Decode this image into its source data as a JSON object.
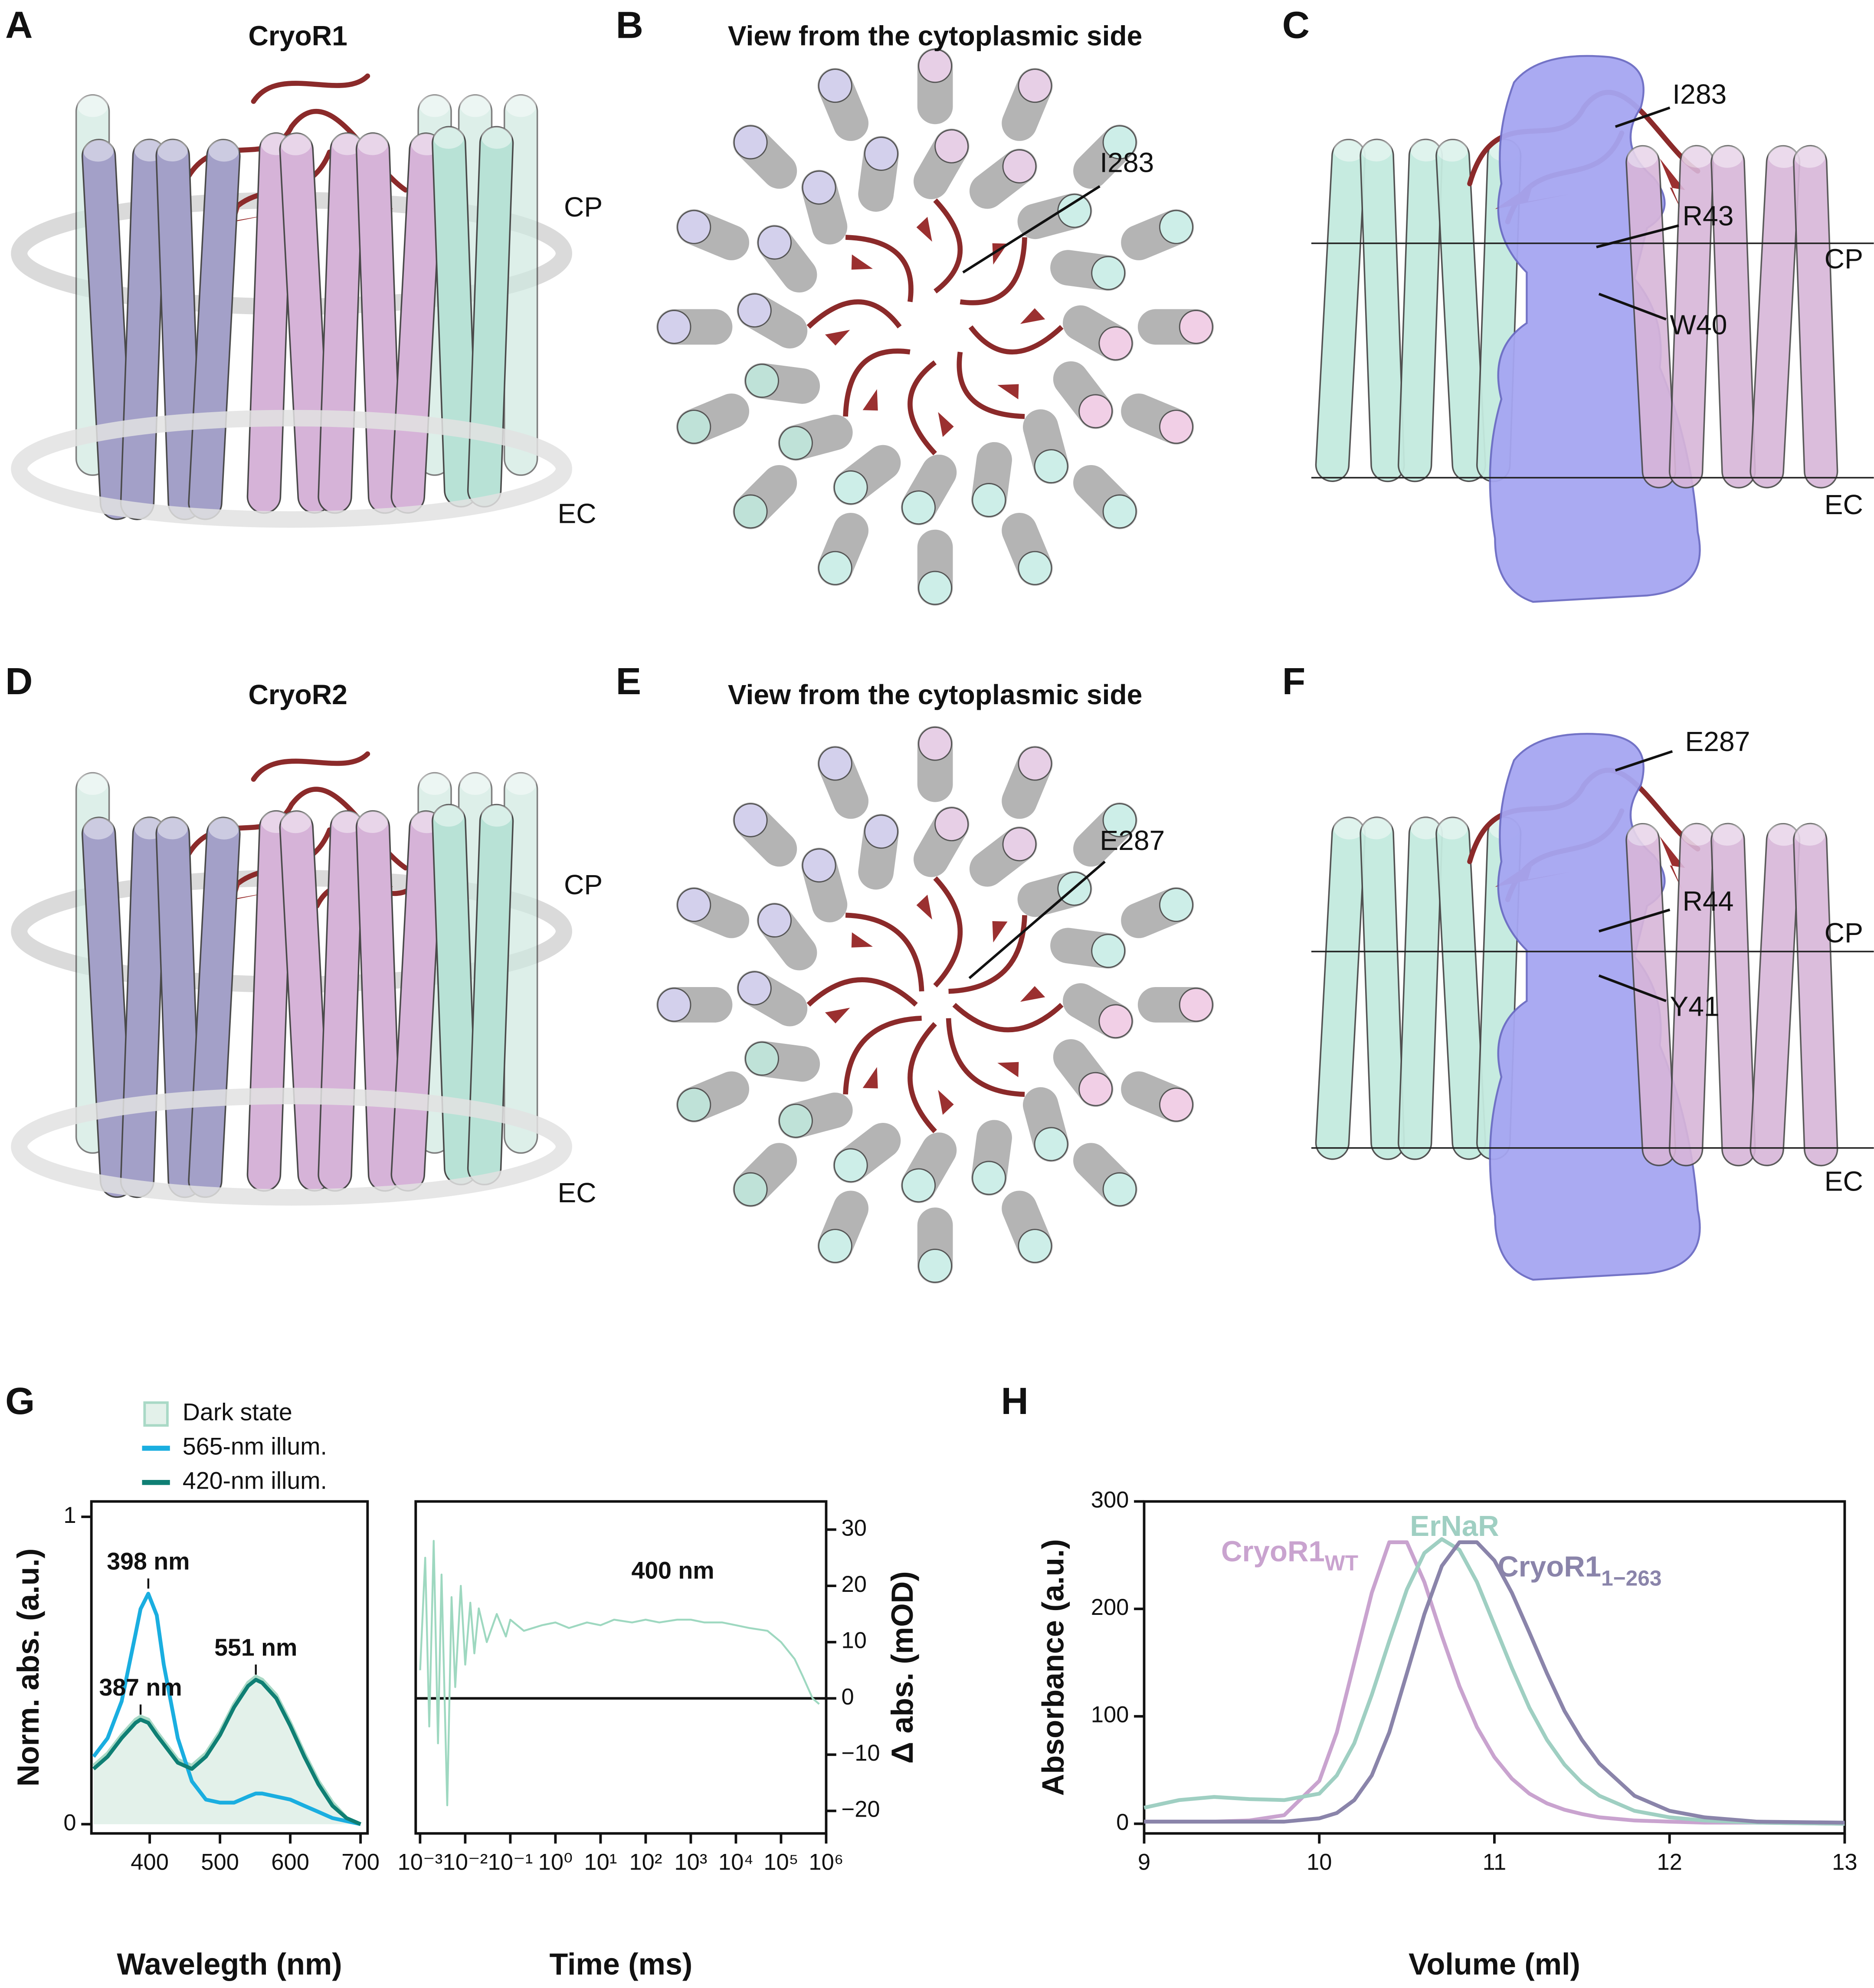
{
  "panels": [
    {
      "label": "A",
      "title": "CryoR1",
      "annotations": [
        "CP",
        "EC"
      ]
    },
    {
      "label": "B",
      "title": "View from the cytoplasmic side",
      "annotations": [
        "I283"
      ]
    },
    {
      "label": "C",
      "annotations": [
        "I283",
        "R43",
        "W40",
        "CP",
        "EC"
      ]
    },
    {
      "label": "D",
      "title": "CryoR2",
      "annotations": [
        "CP",
        "EC"
      ]
    },
    {
      "label": "E",
      "title": "View from the cytoplasmic side",
      "annotations": [
        "E287"
      ]
    },
    {
      "label": "F",
      "annotations": [
        "E287",
        "R44",
        "Y41",
        "CP",
        "EC"
      ]
    },
    {
      "label": "G"
    },
    {
      "label": "H"
    }
  ],
  "chart_data": [
    {
      "type": "line",
      "xlabel": "Wavelegth (nm)",
      "ylabel": "Norm. abs. (a.u.)",
      "x": [
        320,
        340,
        360,
        380,
        387,
        398,
        410,
        420,
        440,
        460,
        480,
        500,
        520,
        540,
        551,
        560,
        580,
        600,
        620,
        640,
        660,
        680,
        700
      ],
      "series": [
        {
          "name": "Dark state",
          "style": "area",
          "color": "#a9d9c6",
          "fill_color": "#e3f1ea",
          "values": [
            0.19,
            0.23,
            0.29,
            0.34,
            0.35,
            0.34,
            0.3,
            0.27,
            0.21,
            0.19,
            0.23,
            0.3,
            0.39,
            0.46,
            0.48,
            0.47,
            0.42,
            0.33,
            0.23,
            0.14,
            0.07,
            0.02,
            0.0
          ]
        },
        {
          "name": "565-nm illum.",
          "color": "#1aaee0",
          "values": [
            0.22,
            0.28,
            0.4,
            0.62,
            0.7,
            0.75,
            0.68,
            0.52,
            0.28,
            0.14,
            0.08,
            0.07,
            0.07,
            0.09,
            0.1,
            0.1,
            0.09,
            0.08,
            0.06,
            0.04,
            0.02,
            0.01,
            0.0
          ]
        },
        {
          "name": "420-nm illum.",
          "color": "#0f7f74",
          "values": [
            0.18,
            0.22,
            0.28,
            0.33,
            0.34,
            0.33,
            0.29,
            0.26,
            0.2,
            0.18,
            0.22,
            0.29,
            0.38,
            0.45,
            0.47,
            0.46,
            0.41,
            0.32,
            0.22,
            0.13,
            0.06,
            0.02,
            0.0
          ]
        }
      ],
      "annotations": [
        {
          "text": "398 nm",
          "x": 398,
          "y": 0.75
        },
        {
          "text": "387 nm",
          "x": 387,
          "y": 0.34
        },
        {
          "text": "551 nm",
          "x": 551,
          "y": 0.47
        }
      ],
      "xlim": [
        317,
        710
      ],
      "ylim": [
        -0.03,
        1.05
      ],
      "xticks": [
        400,
        500,
        600,
        700
      ],
      "yticks": [
        0,
        1
      ]
    },
    {
      "type": "line",
      "xlabel": "Time (ms)",
      "ylabel": "Δ abs. (mOD)",
      "xscale": "log",
      "yaxis_side": "right",
      "hline": 0,
      "x": [
        0.001,
        0.0013,
        0.0016,
        0.002,
        0.0025,
        0.003,
        0.004,
        0.005,
        0.006,
        0.008,
        0.01,
        0.013,
        0.016,
        0.02,
        0.03,
        0.05,
        0.08,
        0.1,
        0.2,
        0.5,
        1,
        2,
        5,
        10,
        20,
        50,
        100,
        200,
        500,
        1000,
        2000,
        5000,
        10000,
        20000,
        50000,
        100000,
        200000,
        300000,
        500000,
        700000
      ],
      "series": [
        {
          "name": "400 nm",
          "color": "#9ed8c0",
          "values": [
            5,
            25,
            -5,
            28,
            -8,
            22,
            -19,
            18,
            2,
            20,
            6,
            17,
            8,
            16,
            10,
            15,
            11,
            14,
            12,
            13,
            13.5,
            12.5,
            13.5,
            13,
            14,
            13.5,
            14,
            13.5,
            14,
            14,
            13.5,
            13.5,
            13,
            12.5,
            12,
            10,
            7,
            4,
            0,
            -1
          ]
        }
      ],
      "annotations": [
        {
          "text": "400 nm",
          "x": 400,
          "y": 17
        }
      ],
      "xlim": [
        0.0008,
        1000000
      ],
      "ylim": [
        -24,
        35
      ],
      "xticks": [
        {
          "value": 0.001,
          "label": "10⁻³"
        },
        {
          "value": 0.01,
          "label": "10⁻²"
        },
        {
          "value": 0.1,
          "label": "10⁻¹"
        },
        {
          "value": 1,
          "label": "10⁰"
        },
        {
          "value": 10,
          "label": "10¹"
        },
        {
          "value": 100,
          "label": "10²"
        },
        {
          "value": 1000,
          "label": "10³"
        },
        {
          "value": 10000,
          "label": "10⁴"
        },
        {
          "value": 100000,
          "label": "10⁵"
        },
        {
          "value": 1000000,
          "label": "10⁶"
        }
      ],
      "yticks": [
        {
          "value": -20,
          "label": "−20"
        },
        {
          "value": -10,
          "label": "−10"
        },
        0,
        10,
        20,
        30
      ]
    },
    {
      "type": "line",
      "xlabel": "Volume (ml)",
      "ylabel": "Absorbance (a.u.)",
      "x": [
        9,
        9.2,
        9.4,
        9.6,
        9.8,
        10,
        10.1,
        10.2,
        10.3,
        10.4,
        10.5,
        10.6,
        10.7,
        10.8,
        10.9,
        11,
        11.1,
        11.2,
        11.3,
        11.4,
        11.5,
        11.6,
        11.8,
        12,
        12.2,
        12.5,
        13
      ],
      "series": [
        {
          "name": "CryoR1",
          "subscript": "WT",
          "color": "#c9a3cf",
          "values": [
            2,
            2,
            2,
            3,
            8,
            40,
            85,
            150,
            215,
            262,
            262,
            225,
            175,
            128,
            90,
            62,
            42,
            28,
            19,
            13,
            9,
            6,
            3,
            2,
            1,
            1,
            0
          ]
        },
        {
          "name": "ErNaR",
          "color": "#9fcfc2",
          "values": [
            15,
            22,
            25,
            23,
            22,
            28,
            45,
            75,
            120,
            170,
            218,
            252,
            265,
            255,
            225,
            185,
            145,
            108,
            78,
            55,
            38,
            26,
            12,
            6,
            3,
            1,
            0
          ]
        },
        {
          "name": "CryoR1",
          "subscript": "1−263",
          "color": "#8a84aa",
          "values": [
            2,
            2,
            2,
            2,
            2,
            5,
            10,
            22,
            45,
            85,
            140,
            195,
            240,
            262,
            262,
            245,
            215,
            178,
            140,
            105,
            78,
            56,
            26,
            12,
            6,
            2,
            1
          ]
        }
      ],
      "xlim": [
        9,
        13
      ],
      "ylim": [
        -9,
        300
      ],
      "xticks": [
        9,
        10,
        11,
        12,
        13
      ],
      "yticks": [
        0,
        100,
        200,
        300
      ]
    }
  ]
}
